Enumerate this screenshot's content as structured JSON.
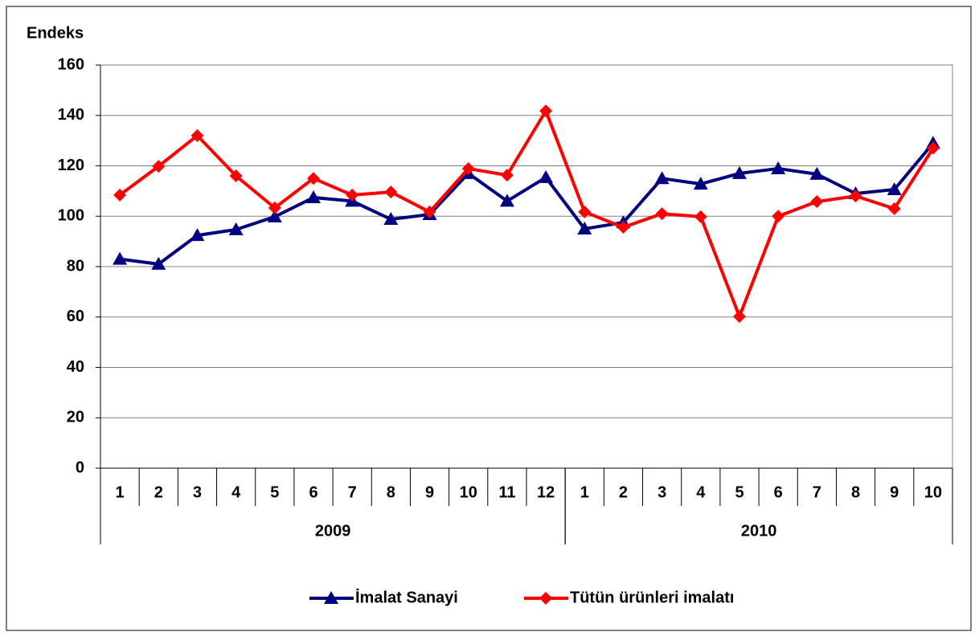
{
  "chart_data": {
    "type": "line",
    "y_axis_label": "Endeks",
    "category_groups": [
      {
        "label": "2009",
        "categories": [
          "1",
          "2",
          "3",
          "4",
          "5",
          "6",
          "7",
          "8",
          "9",
          "10",
          "11",
          "12"
        ]
      },
      {
        "label": "2010",
        "categories": [
          "1",
          "2",
          "3",
          "4",
          "5",
          "6",
          "7",
          "8",
          "9",
          "10"
        ]
      }
    ],
    "series": [
      {
        "name": "İmalat Sanayi",
        "color": "#000080",
        "marker": "triangle",
        "values": [
          83,
          81,
          92.4,
          94.7,
          99.8,
          107.4,
          106,
          98.8,
          100.7,
          117,
          106,
          115.4,
          95,
          97.5,
          115,
          112.8,
          117,
          118.9,
          116.7,
          109,
          110.6,
          129
        ]
      },
      {
        "name": "Tütün ürünleri imalatı",
        "color": "#ff0000",
        "marker": "diamond",
        "values": [
          108.4,
          119.8,
          132,
          116,
          103.3,
          115,
          108.4,
          109.6,
          101.7,
          118.9,
          116.3,
          141.8,
          101.7,
          95.6,
          101,
          99.8,
          60.2,
          100,
          105.8,
          108,
          103,
          127
        ]
      }
    ],
    "ylim": [
      0,
      160
    ],
    "yticks": [
      0,
      20,
      40,
      60,
      80,
      100,
      120,
      140,
      160
    ],
    "grid": true,
    "legend": "bottom"
  }
}
